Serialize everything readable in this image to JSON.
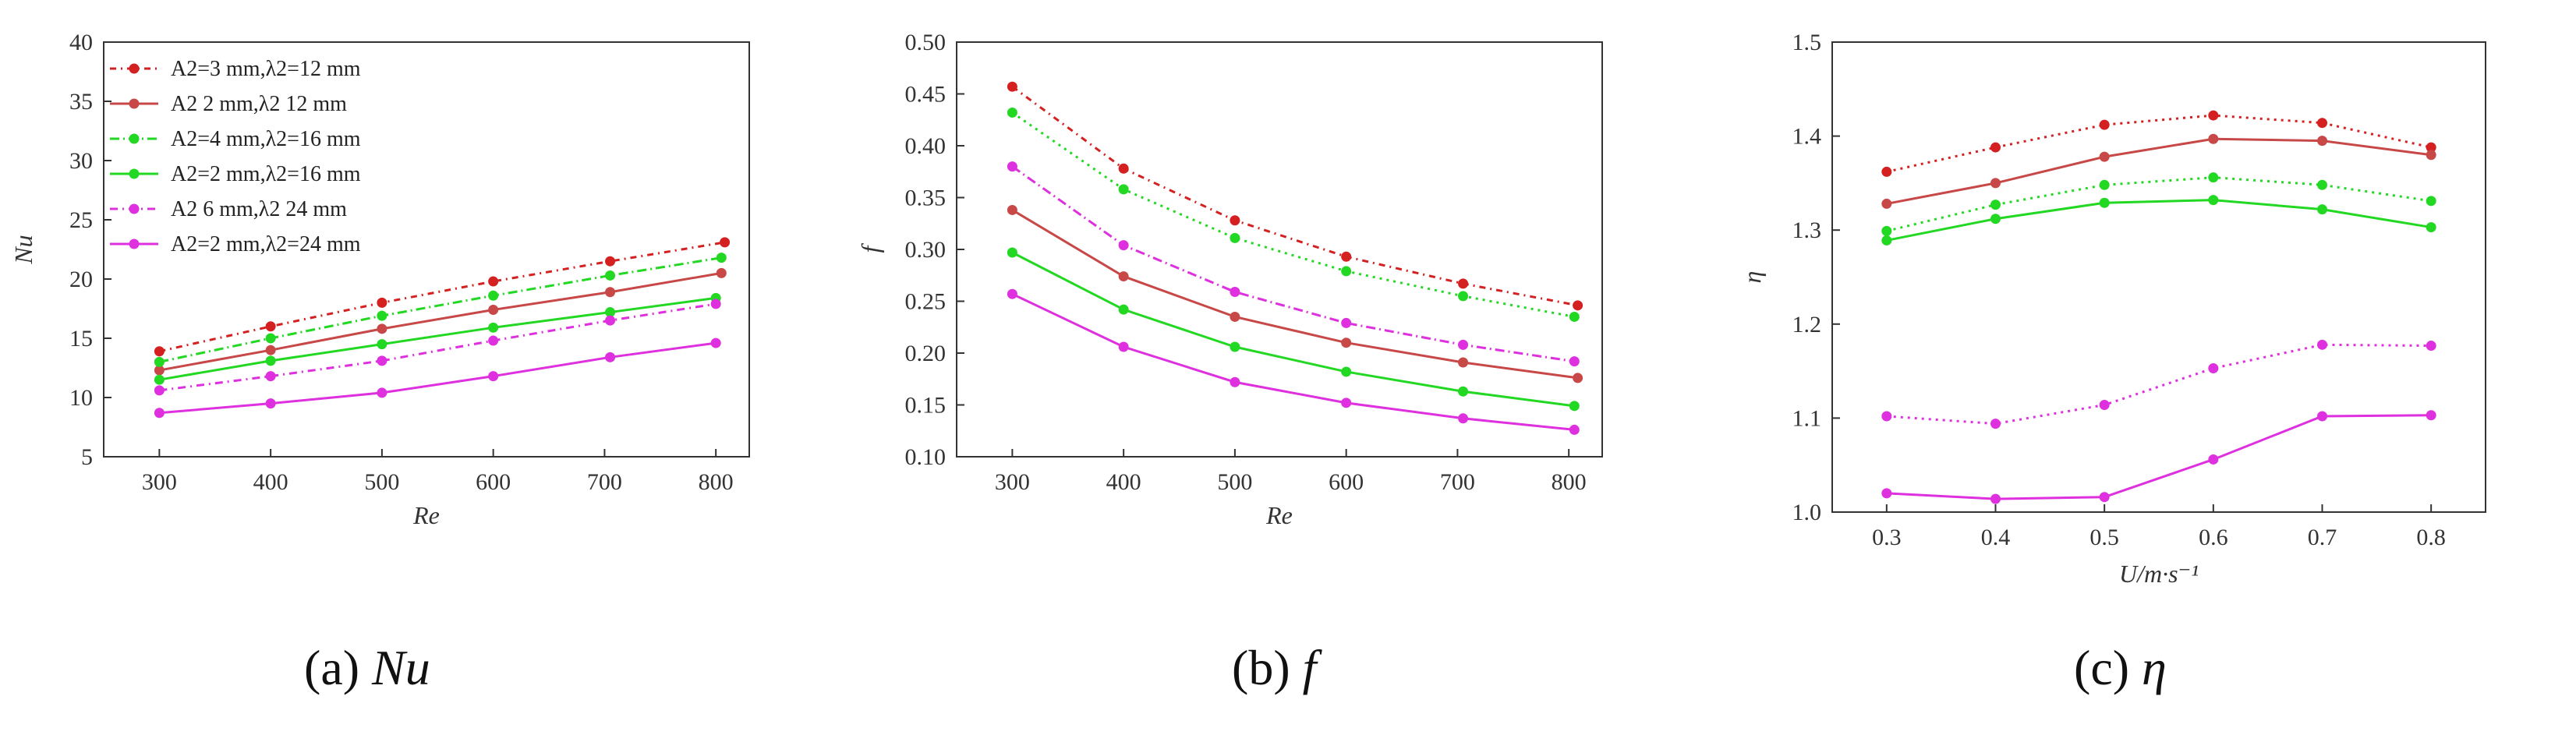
{
  "colors": {
    "red": "#d42020",
    "redLight": "#c84848",
    "green": "#22d822",
    "magenta": "#de30de",
    "axis": "#333333"
  },
  "captions": [
    {
      "prefix": "(a) ",
      "symbol": "Nu"
    },
    {
      "prefix": "(b) ",
      "symbol": "f"
    },
    {
      "prefix": "(c) ",
      "symbol": "η"
    }
  ],
  "chart_data": [
    {
      "type": "line",
      "xlabel": "Re",
      "ylabel": "Nu",
      "xlim": [
        250,
        830
      ],
      "ylim": [
        5,
        40
      ],
      "xticks": [
        300,
        400,
        500,
        600,
        700,
        800
      ],
      "yticks": [
        5,
        10,
        15,
        20,
        25,
        30,
        35,
        40
      ],
      "legend_position": "top-left",
      "series": [
        {
          "name": "A2=3 mm,λ2=12 mm",
          "color": "#d42020",
          "dash": "8,6,2,6",
          "x": [
            300,
            400,
            500,
            600,
            705,
            808
          ],
          "y": [
            13.9,
            16.0,
            18.0,
            19.8,
            21.5,
            23.1
          ]
        },
        {
          "name": "A2  2 mm,λ2  12 mm",
          "color": "#c84848",
          "dash": "",
          "x": [
            300,
            400,
            500,
            600,
            705,
            805
          ],
          "y": [
            12.3,
            14.0,
            15.8,
            17.4,
            18.9,
            20.5
          ]
        },
        {
          "name": "A2=4 mm,λ2=16 mm",
          "color": "#22d822",
          "dash": "12,5,2,5",
          "x": [
            300,
            400,
            500,
            600,
            705,
            805
          ],
          "y": [
            13.0,
            15.0,
            16.9,
            18.6,
            20.3,
            21.8
          ]
        },
        {
          "name": "A2=2 mm,λ2=16 mm",
          "color": "#22d822",
          "dash": "",
          "x": [
            300,
            400,
            500,
            600,
            705,
            800
          ],
          "y": [
            11.5,
            13.1,
            14.5,
            15.9,
            17.2,
            18.4
          ]
        },
        {
          "name": "A2  6 mm,λ2  24 mm",
          "color": "#de30de",
          "dash": "10,6,2,6",
          "x": [
            300,
            400,
            500,
            600,
            705,
            800
          ],
          "y": [
            10.6,
            11.8,
            13.1,
            14.8,
            16.5,
            17.9
          ]
        },
        {
          "name": "A2=2 mm,λ2=24 mm",
          "color": "#de30de",
          "dash": "",
          "x": [
            300,
            400,
            500,
            600,
            705,
            800
          ],
          "y": [
            8.7,
            9.5,
            10.4,
            11.8,
            13.4,
            14.6
          ]
        }
      ]
    },
    {
      "type": "line",
      "xlabel": "Re",
      "ylabel": "f",
      "xlim": [
        250,
        830
      ],
      "ylim": [
        0.1,
        0.5
      ],
      "xticks": [
        300,
        400,
        500,
        600,
        700,
        800
      ],
      "yticks": [
        0.1,
        0.15,
        0.2,
        0.25,
        0.3,
        0.35,
        0.4,
        0.45,
        0.5
      ],
      "series": [
        {
          "color": "#d42020",
          "dash": "8,6,2,6",
          "x": [
            300,
            400,
            500,
            600,
            705,
            808
          ],
          "y": [
            0.457,
            0.378,
            0.328,
            0.293,
            0.267,
            0.246
          ]
        },
        {
          "color": "#22d822",
          "dash": "3,6",
          "x": [
            300,
            400,
            500,
            600,
            705,
            805
          ],
          "y": [
            0.432,
            0.358,
            0.311,
            0.279,
            0.255,
            0.235
          ]
        },
        {
          "color": "#de30de",
          "dash": "12,5,2,5",
          "x": [
            300,
            400,
            500,
            600,
            705,
            805
          ],
          "y": [
            0.38,
            0.304,
            0.259,
            0.229,
            0.208,
            0.192
          ]
        },
        {
          "color": "#c84848",
          "dash": "",
          "x": [
            300,
            400,
            500,
            600,
            705,
            808
          ],
          "y": [
            0.338,
            0.274,
            0.235,
            0.21,
            0.191,
            0.176
          ]
        },
        {
          "color": "#22d822",
          "dash": "",
          "x": [
            300,
            400,
            500,
            600,
            705,
            805
          ],
          "y": [
            0.297,
            0.242,
            0.206,
            0.182,
            0.163,
            0.149
          ]
        },
        {
          "color": "#de30de",
          "dash": "",
          "x": [
            300,
            400,
            500,
            600,
            705,
            805
          ],
          "y": [
            0.257,
            0.206,
            0.172,
            0.152,
            0.137,
            0.126
          ]
        }
      ]
    },
    {
      "type": "line",
      "xlabel": "U/m·s⁻¹",
      "ylabel": "η",
      "xlim": [
        0.25,
        0.85
      ],
      "ylim": [
        1.0,
        1.5
      ],
      "xticks": [
        0.3,
        0.4,
        0.5,
        0.6,
        0.7,
        0.8
      ],
      "xtick_labels": [
        "0.3",
        "0.4",
        "0.5",
        "0.6",
        "0.7",
        "0.8"
      ],
      "yticks": [
        1.0,
        1.1,
        1.2,
        1.3,
        1.4,
        1.5
      ],
      "ytick_labels": [
        "1.0",
        "1.1",
        "1.2",
        "1.3",
        "1.4",
        "1.5"
      ],
      "series": [
        {
          "color": "#d42020",
          "dash": "3,6",
          "x": [
            0.3,
            0.4,
            0.5,
            0.6,
            0.7,
            0.8
          ],
          "y": [
            1.362,
            1.388,
            1.412,
            1.422,
            1.414,
            1.388
          ]
        },
        {
          "color": "#c84848",
          "dash": "",
          "x": [
            0.3,
            0.4,
            0.5,
            0.6,
            0.7,
            0.8
          ],
          "y": [
            1.328,
            1.35,
            1.378,
            1.397,
            1.395,
            1.38
          ]
        },
        {
          "color": "#22d822",
          "dash": "3,6",
          "x": [
            0.3,
            0.4,
            0.5,
            0.6,
            0.7,
            0.8
          ],
          "y": [
            1.299,
            1.327,
            1.348,
            1.356,
            1.348,
            1.331
          ]
        },
        {
          "color": "#22d822",
          "dash": "",
          "x": [
            0.3,
            0.4,
            0.5,
            0.6,
            0.7,
            0.8
          ],
          "y": [
            1.289,
            1.312,
            1.329,
            1.332,
            1.322,
            1.303
          ]
        },
        {
          "color": "#de30de",
          "dash": "3,6",
          "x": [
            0.3,
            0.4,
            0.5,
            0.6,
            0.7,
            0.8
          ],
          "y": [
            1.102,
            1.094,
            1.114,
            1.153,
            1.178,
            1.177
          ]
        },
        {
          "color": "#de30de",
          "dash": "",
          "x": [
            0.3,
            0.4,
            0.5,
            0.6,
            0.7,
            0.8
          ],
          "y": [
            1.02,
            1.014,
            1.016,
            1.056,
            1.102,
            1.103
          ]
        }
      ]
    }
  ]
}
